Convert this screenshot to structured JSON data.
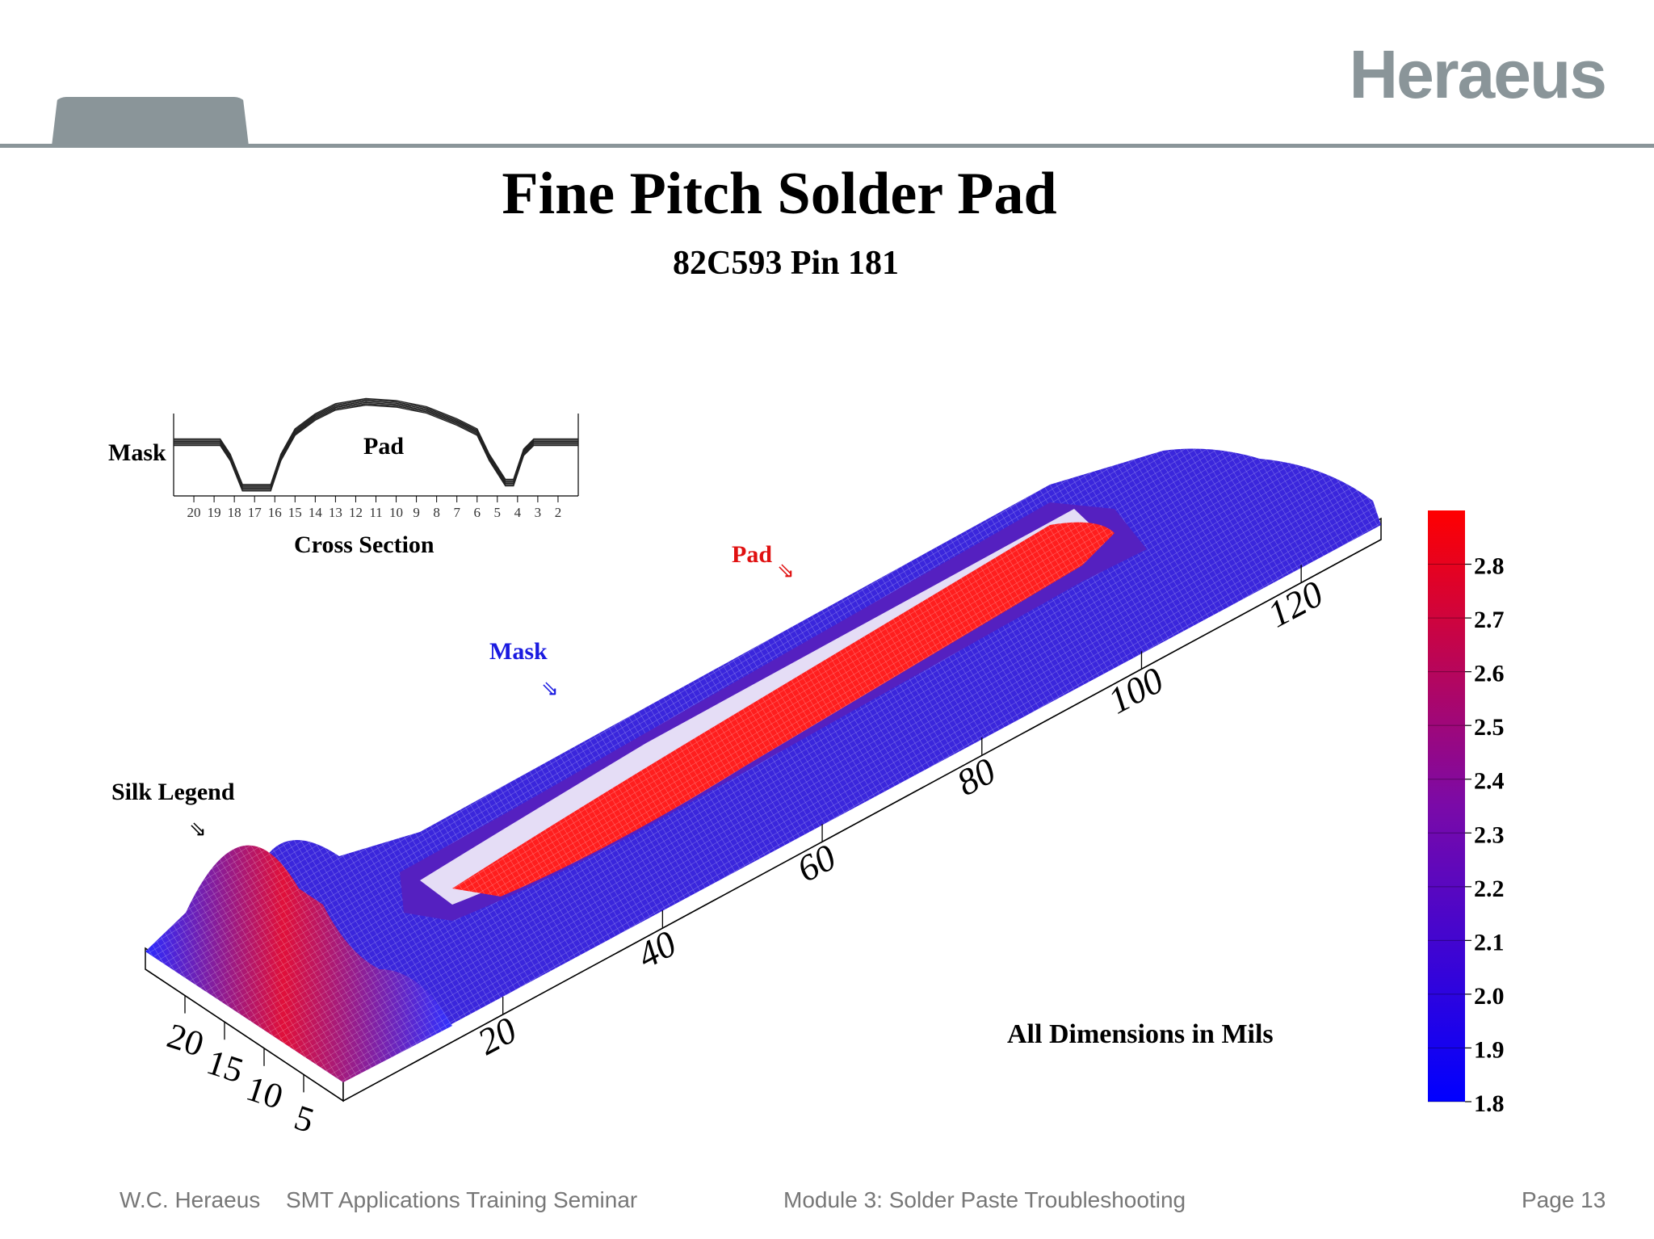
{
  "slide": {
    "logo": "Heraeus",
    "title": "Fine Pitch Solder Pad",
    "subtitle": "82C593 Pin 181",
    "note": "All Dimensions in Mils"
  },
  "cross_section": {
    "left_label": "Mask",
    "center_label": "Pad",
    "caption": "Cross Section",
    "ticks": [
      "20",
      "19",
      "18",
      "17",
      "16",
      "15",
      "14",
      "13",
      "12",
      "11",
      "10",
      "9",
      "8",
      "7",
      "6",
      "5",
      "4",
      "3",
      "2"
    ]
  },
  "annotations": {
    "silk_legend": "Silk Legend",
    "mask": "Mask",
    "pad": "Pad",
    "arrow_glyph": "⇘"
  },
  "colors": {
    "mask": "#1a1aff",
    "pad": "#ff1a1a",
    "header_gray": "#8a9599"
  },
  "chart_data": [
    {
      "type": "line",
      "title": "",
      "x_ticks": [
        20,
        19,
        18,
        17,
        16,
        15,
        14,
        13,
        12,
        11,
        10,
        9,
        8,
        7,
        6,
        5,
        4,
        3,
        2
      ],
      "profile": [
        {
          "x": 21.0,
          "y": 2.3
        },
        {
          "x": 18.7,
          "y": 2.3
        },
        {
          "x": 18.2,
          "y": 2.15
        },
        {
          "x": 17.6,
          "y": 1.85
        },
        {
          "x": 16.2,
          "y": 1.85
        },
        {
          "x": 15.7,
          "y": 2.15
        },
        {
          "x": 15.0,
          "y": 2.4
        },
        {
          "x": 14.0,
          "y": 2.55
        },
        {
          "x": 13.0,
          "y": 2.65
        },
        {
          "x": 11.5,
          "y": 2.7
        },
        {
          "x": 10.0,
          "y": 2.68
        },
        {
          "x": 8.5,
          "y": 2.62
        },
        {
          "x": 7.0,
          "y": 2.5
        },
        {
          "x": 6.0,
          "y": 2.4
        },
        {
          "x": 5.4,
          "y": 2.15
        },
        {
          "x": 4.6,
          "y": 1.9
        },
        {
          "x": 4.2,
          "y": 1.9
        },
        {
          "x": 3.7,
          "y": 2.2
        },
        {
          "x": 3.2,
          "y": 2.3
        },
        {
          "x": 1.0,
          "y": 2.3
        }
      ]
    },
    {
      "type": "heatmap",
      "title": "",
      "x_ticks": [
        20,
        40,
        60,
        80,
        100,
        120
      ],
      "y_ticks": [
        20,
        15,
        10,
        5
      ],
      "xlim": [
        0,
        130
      ],
      "ylim": [
        0,
        25
      ],
      "colorbar": {
        "ticks": [
          2.8,
          2.7,
          2.6,
          2.5,
          2.4,
          2.3,
          2.2,
          2.1,
          2.0,
          1.9,
          1.8
        ],
        "range": [
          1.8,
          2.9
        ],
        "low_color": "#0000ff",
        "high_color": "#ff0000"
      }
    }
  ],
  "footer": {
    "company": "W.C. Heraeus",
    "seminar": "SMT Applications Training Seminar",
    "module": "Module 3: Solder Paste Troubleshooting",
    "page": "Page 13"
  }
}
